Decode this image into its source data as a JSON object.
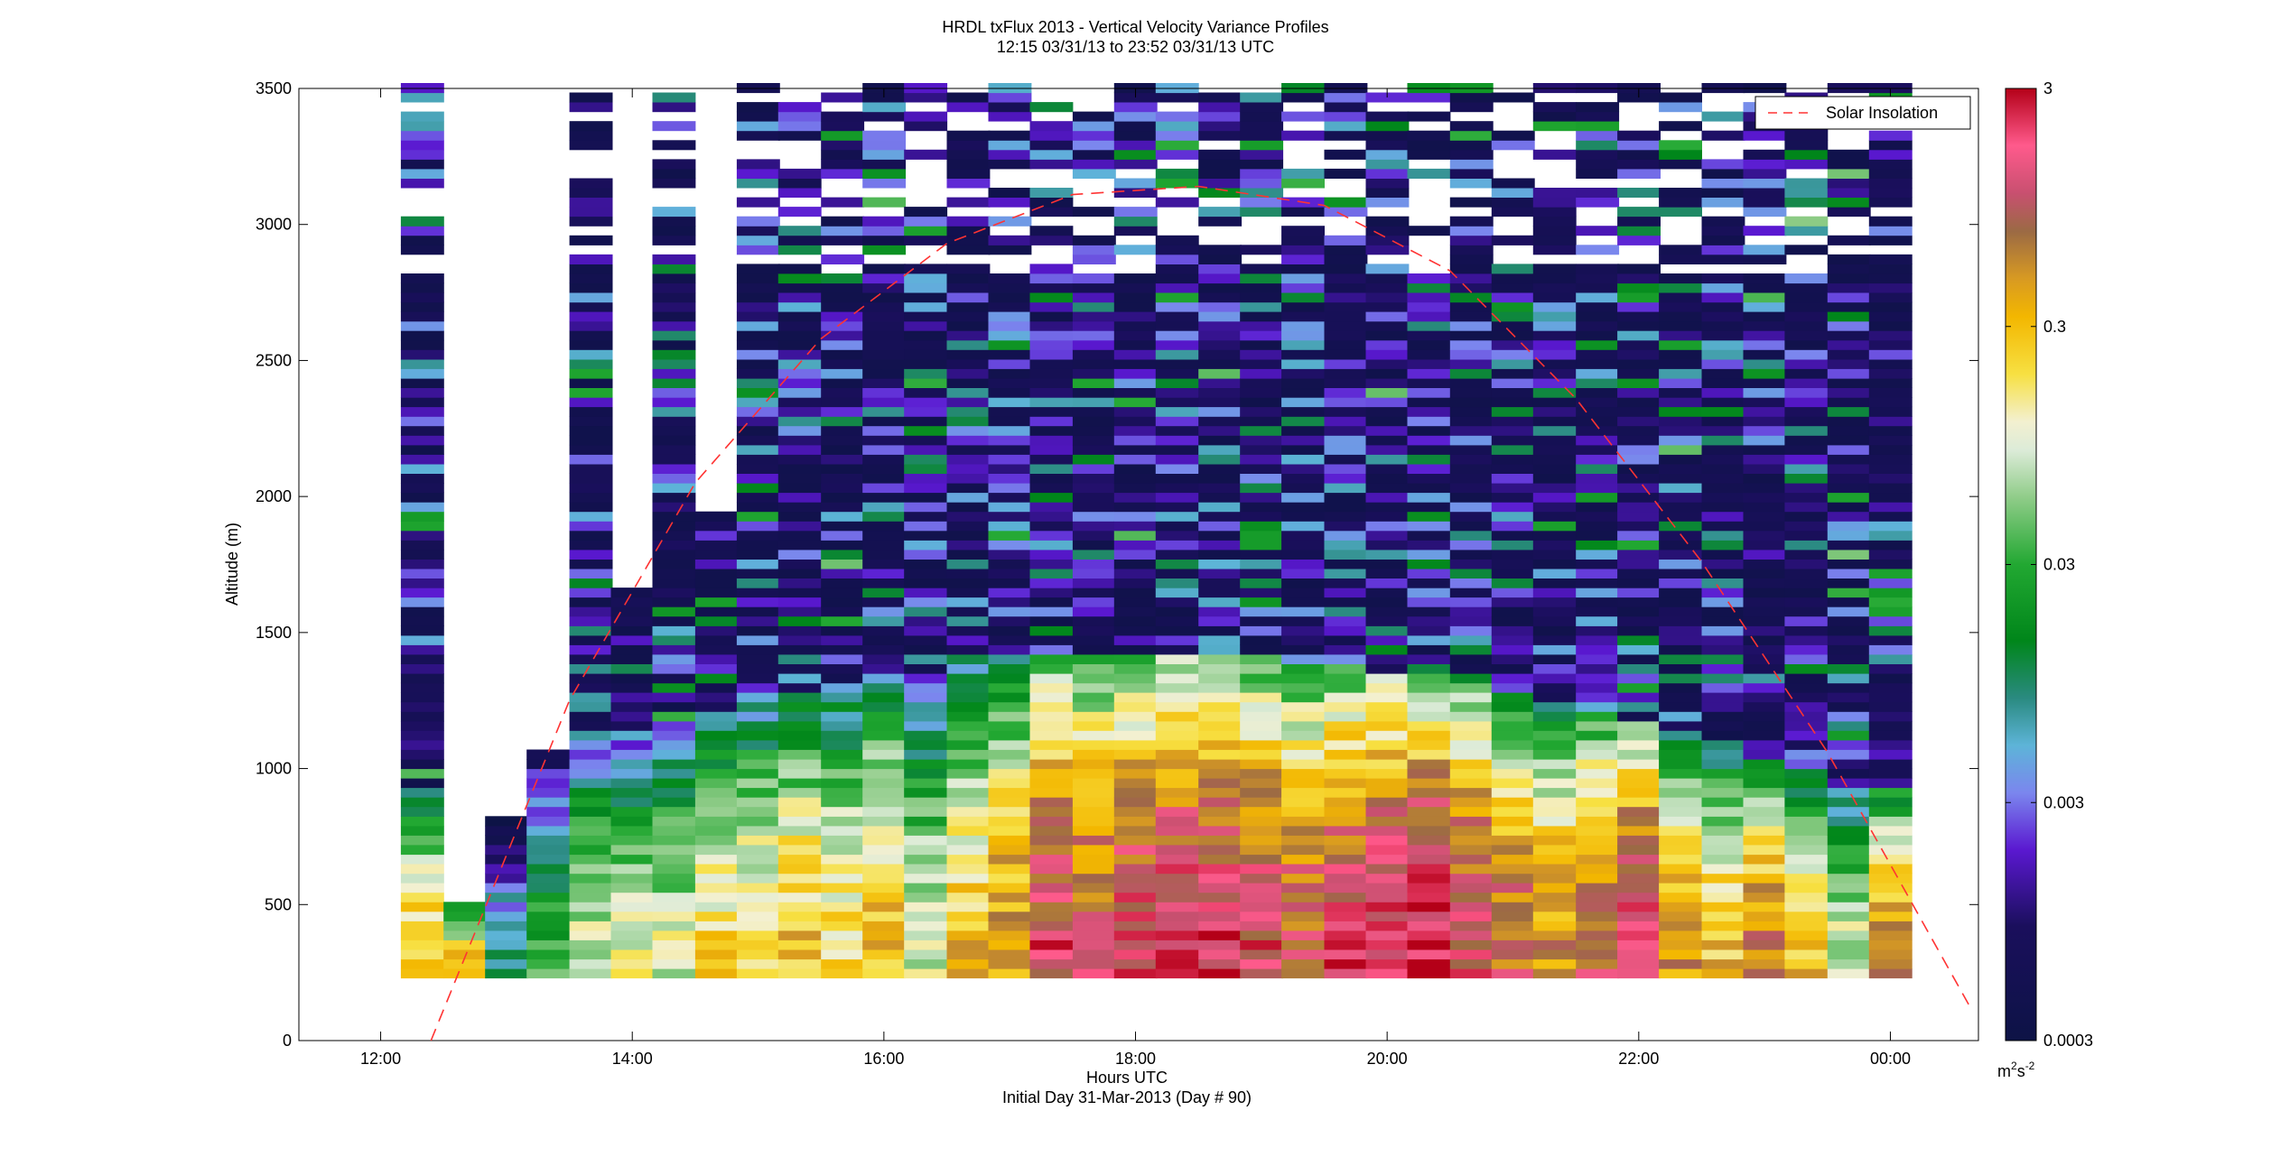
{
  "chart_data": {
    "type": "heatmap",
    "title": "HRDL txFlux 2013 - Vertical Velocity Variance Profiles",
    "subtitle": "12:15 03/31/13 to 23:52 03/31/13  UTC",
    "xlabel": "Hours UTC",
    "xlabel2": "Initial Day 31-Mar-2013 (Day # 90)",
    "ylabel": "Altitude (m)",
    "xlim": [
      11.35,
      24.7
    ],
    "ylim": [
      0,
      3500
    ],
    "x_ticks": [
      12,
      14,
      16,
      18,
      20,
      22,
      24
    ],
    "x_tick_labels": [
      "12:00",
      "14:00",
      "16:00",
      "18:00",
      "20:00",
      "22:00",
      "00:00"
    ],
    "y_ticks": [
      0,
      500,
      1000,
      1500,
      2000,
      2500,
      3000,
      3500
    ],
    "y_tick_labels": [
      "0",
      "500",
      "1000",
      "1500",
      "2000",
      "2500",
      "3000",
      "3500"
    ],
    "colorbar": {
      "scale": "log",
      "range": [
        0.0003,
        3
      ],
      "ticks": [
        3,
        0.3,
        0.03,
        0.003,
        0.0003
      ],
      "tick_labels": [
        "3",
        "0.3",
        "0.03",
        "0.003",
        "0.0003"
      ],
      "units_base": "m",
      "units_sup1": "2",
      "units_mid": "s",
      "units_sup2": "-2"
    },
    "legend": {
      "label": "Solar Insolation",
      "placement": "top-right",
      "color": "#ff3333"
    },
    "solar_insolation_curve": {
      "x": [
        12.4,
        13.5,
        14.5,
        15.5,
        16.5,
        17.5,
        18.5,
        19.5,
        20.5,
        21.5,
        22.5,
        23.5,
        24.65
      ],
      "y": [
        0,
        1250,
        2050,
        2580,
        2930,
        3110,
        3140,
        3070,
        2830,
        2360,
        1760,
        1060,
        110
      ]
    },
    "columns_time_hours": [
      12.33,
      12.67,
      13.0,
      13.33,
      13.67,
      14.0,
      14.33,
      14.67,
      15.0,
      15.33,
      15.67,
      16.0,
      16.33,
      16.67,
      17.0,
      17.33,
      17.67,
      18.0,
      18.33,
      18.67,
      19.0,
      19.33,
      19.67,
      20.0,
      20.33,
      20.67,
      21.0,
      21.33,
      21.67,
      22.0,
      22.33,
      22.67,
      23.0,
      23.33,
      23.67,
      24.0
    ],
    "columns_top_altitude_m": [
      3500,
      490,
      800,
      1050,
      3500,
      1650,
      3500,
      1930,
      3500,
      3500,
      3500,
      3500,
      3500,
      3500,
      3500,
      3500,
      3500,
      3500,
      3500,
      3500,
      3500,
      3500,
      3500,
      3500,
      3500,
      3500,
      3500,
      3500,
      3500,
      3500,
      3500,
      3500,
      3500,
      3500,
      3500,
      3500
    ],
    "bottom_altitude_m": 230,
    "variance_near_surface_m2s2_approx": [
      0.3,
      0.3,
      0.01,
      0.03,
      0.1,
      0.1,
      0.1,
      0.2,
      0.2,
      0.3,
      0.2,
      0.3,
      0.1,
      0.3,
      0.5,
      1.5,
      1.0,
      1.5,
      2.0,
      2.0,
      1.5,
      1.0,
      1.5,
      2.0,
      2.5,
      1.5,
      0.8,
      0.5,
      1.0,
      2.0,
      0.5,
      0.3,
      0.6,
      0.3,
      0.1,
      0.6
    ]
  }
}
